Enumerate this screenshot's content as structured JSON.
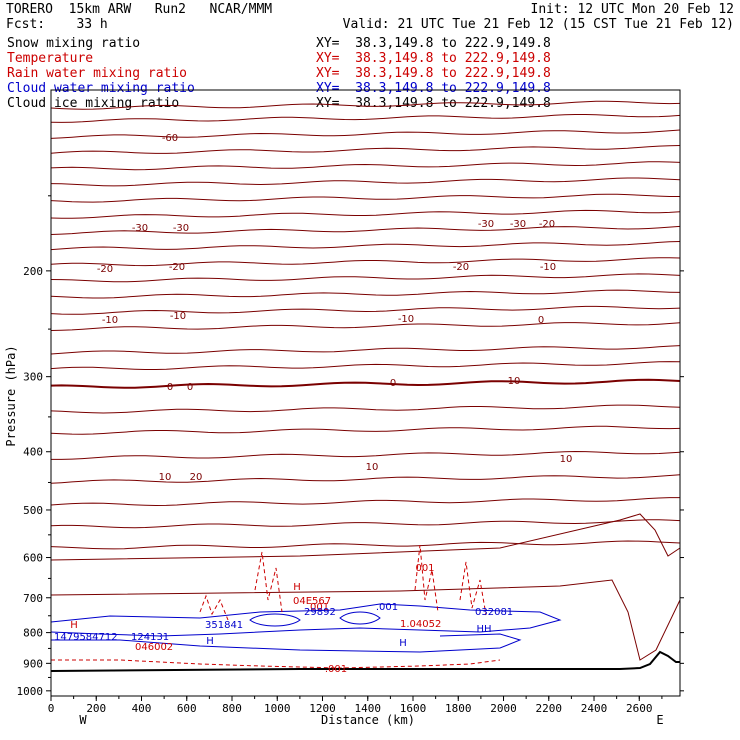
{
  "header": {
    "line1_left": "TORERO  15km ARW   Run2   NCAR/MMM",
    "line1_right": "Init: 12 UTC Mon 20 Feb 12",
    "line2_left": "Fcst:    33 h",
    "line2_right": "Valid: 21 UTC Tue 21 Feb 12 (15 CST Tue 21 Feb 12)"
  },
  "fields": [
    {
      "name": "Snow mixing ratio",
      "xy": "XY=  38.3,149.8 to 222.9,149.8",
      "color": "#000000"
    },
    {
      "name": "Temperature",
      "xy": "XY=  38.3,149.8 to 222.9,149.8",
      "color": "#cc0000"
    },
    {
      "name": "Rain water mixing ratio",
      "xy": "XY=  38.3,149.8 to 222.9,149.8",
      "color": "#cc0000"
    },
    {
      "name": "Cloud water mixing ratio",
      "xy": "XY=  38.3,149.8 to 222.9,149.8",
      "color": "#0000cc"
    },
    {
      "name": "Cloud ice mixing ratio",
      "xy": "XY=  38.3,149.8 to 222.9,149.8",
      "color": "#000000"
    }
  ],
  "chart_data": {
    "type": "line",
    "xlabel": "Distance (km)",
    "ylabel": "Pressure (hPa)",
    "xlim": [
      0,
      2780
    ],
    "ylim": [
      100,
      1020
    ],
    "y_scale": "log",
    "x_ticks": [
      "0",
      "200",
      "400",
      "600",
      "800",
      "1000",
      "1200",
      "1400",
      "1600",
      "1800",
      "2000",
      "2200",
      "2400",
      "2600"
    ],
    "y_ticks": [
      "200",
      "300",
      "400",
      "500",
      "600",
      "700",
      "800",
      "900",
      "1000"
    ],
    "x_endpoints": {
      "left": "W",
      "right": "E"
    },
    "temperature_isotherm_labels": [
      "-60",
      "-30",
      "-30",
      "-30",
      "-30",
      "-20",
      "-20",
      "-20",
      "-20",
      "-10",
      "-10",
      "-10",
      "-10",
      "0",
      "0",
      "0",
      "0",
      "10",
      "10",
      "10",
      "10",
      "20"
    ],
    "cloud_labels": [
      "H",
      "H",
      "H",
      "HH",
      "H",
      ".001",
      ".001",
      "001",
      ".001"
    ],
    "cloud_numbers": [
      "1479584712",
      "124131",
      "046002",
      "351841",
      "04E567",
      "29892",
      "1.04052",
      "032081"
    ]
  }
}
